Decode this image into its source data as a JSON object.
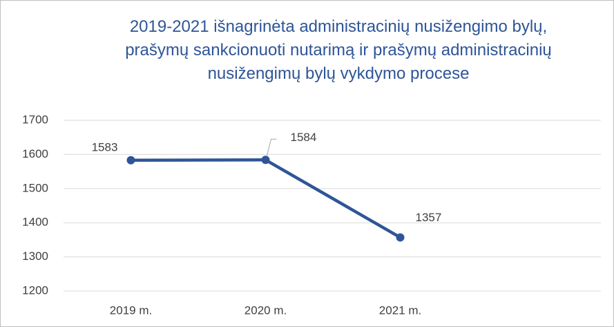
{
  "chart_data": {
    "type": "line",
    "title": "2019-2021 išnagrinėta administracinių nusižengimo bylų, prašymų sankcionuoti nutarimą ir prašymų administracinių nusižengimų bylų vykdymo procese",
    "categories": [
      "2019 m.",
      "2020 m.",
      "2021 m."
    ],
    "values": [
      1583,
      1584,
      1357
    ],
    "color": "#2f5597",
    "ylim": [
      1200,
      1700
    ],
    "yticks": [
      1200,
      1300,
      1400,
      1500,
      1600,
      1700
    ],
    "grid": true
  }
}
